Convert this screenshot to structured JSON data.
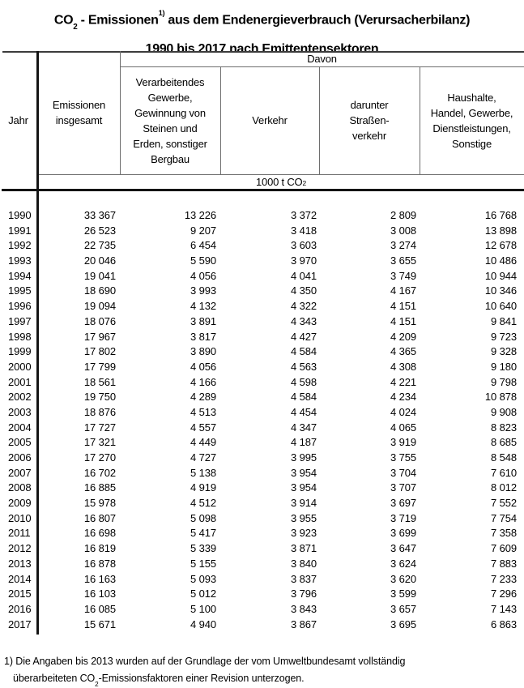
{
  "page": {
    "background": "#ffffff",
    "text_color": "#000000",
    "thin_line_color": "#6e6e6e",
    "thick_line_color": "#141414"
  },
  "title": {
    "co": "CO",
    "co_sub": "2",
    "mid": " - Emissionen",
    "footnote_ref": "1)",
    "rest": " aus dem Endenergieverbrauch (Verursacherbilanz)",
    "line2": "1990 bis 2017 nach Emittentensektoren"
  },
  "table": {
    "header": {
      "jahr": "Jahr",
      "emissionen_insgesamt": "Emissionen\ninsgesamt",
      "davon": "Davon",
      "verarbeitendes_gewerbe": "Verarbeitendes\nGewerbe,\nGewinnung von\nSteinen und\nErden, sonstiger\nBergbau",
      "verkehr": "Verkehr",
      "strassenverkehr": "darunter\nStraßen-\nverkehr",
      "haushalte": "Haushalte,\nHandel, Gewerbe,\nDienstleistungen,\nSonstige",
      "unit_pre": "1000 t CO",
      "unit_sub": "2"
    },
    "rows": [
      [
        "1990",
        "33 367",
        "13 226",
        "3 372",
        "2 809",
        "16 768"
      ],
      [
        "1991",
        "26 523",
        "9 207",
        "3 418",
        "3 008",
        "13 898"
      ],
      [
        "1992",
        "22 735",
        "6 454",
        "3 603",
        "3 274",
        "12 678"
      ],
      [
        "1993",
        "20 046",
        "5 590",
        "3 970",
        "3 655",
        "10 486"
      ],
      [
        "1994",
        "19 041",
        "4 056",
        "4 041",
        "3 749",
        "10 944"
      ],
      [
        "1995",
        "18 690",
        "3 993",
        "4 350",
        "4 167",
        "10 346"
      ],
      [
        "1996",
        "19 094",
        "4 132",
        "4 322",
        "4 151",
        "10 640"
      ],
      [
        "1997",
        "18 076",
        "3 891",
        "4 343",
        "4 151",
        "9 841"
      ],
      [
        "1998",
        "17 967",
        "3 817",
        "4 427",
        "4 209",
        "9 723"
      ],
      [
        "1999",
        "17 802",
        "3 890",
        "4 584",
        "4 365",
        "9 328"
      ],
      [
        "2000",
        "17 799",
        "4 056",
        "4 563",
        "4 308",
        "9 180"
      ],
      [
        "2001",
        "18 561",
        "4 166",
        "4 598",
        "4 221",
        "9 798"
      ],
      [
        "2002",
        "19 750",
        "4 289",
        "4 584",
        "4 234",
        "10 878"
      ],
      [
        "2003",
        "18 876",
        "4 513",
        "4 454",
        "4 024",
        "9 908"
      ],
      [
        "2004",
        "17 727",
        "4 557",
        "4 347",
        "4 065",
        "8 823"
      ],
      [
        "2005",
        "17 321",
        "4 449",
        "4 187",
        "3 919",
        "8 685"
      ],
      [
        "2006",
        "17 270",
        "4 727",
        "3 995",
        "3 755",
        "8 548"
      ],
      [
        "2007",
        "16 702",
        "5 138",
        "3 954",
        "3 704",
        "7 610"
      ],
      [
        "2008",
        "16 885",
        "4 919",
        "3 954",
        "3 707",
        "8 012"
      ],
      [
        "2009",
        "15 978",
        "4 512",
        "3 914",
        "3 697",
        "7 552"
      ],
      [
        "2010",
        "16 807",
        "5 098",
        "3 955",
        "3 719",
        "7 754"
      ],
      [
        "2011",
        "16 698",
        "5 417",
        "3 923",
        "3 699",
        "7 358"
      ],
      [
        "2012",
        "16 819",
        "5 339",
        "3 871",
        "3 647",
        "7 609"
      ],
      [
        "2013",
        "16 878",
        "5 155",
        "3 840",
        "3 624",
        "7 883"
      ],
      [
        "2014",
        "16 163",
        "5 093",
        "3 837",
        "3 620",
        "7 233"
      ],
      [
        "2015",
        "16 103",
        "5 012",
        "3 796",
        "3 599",
        "7 296"
      ],
      [
        "2016",
        "16 085",
        "5 100",
        "3 843",
        "3 657",
        "7 143"
      ],
      [
        "2017",
        "15 671",
        "4 940",
        "3 867",
        "3 695",
        "6 863"
      ]
    ]
  },
  "footnote": {
    "line1": "1) Die Angaben bis 2013 wurden auf der Grundlage der vom Umweltbundesamt vollständig",
    "line2_pre": "überarbeiteten CO",
    "line2_sub": "2",
    "line2_post": "-Emissionsfaktoren einer Revision unterzogen."
  },
  "chart_data": {
    "type": "table",
    "title": "CO2-Emissionen aus dem Endenergieverbrauch (Verursacherbilanz) 1990 bis 2017 nach Emittentensektoren",
    "unit": "1000 t CO2",
    "columns": [
      "Jahr",
      "Emissionen insgesamt",
      "Verarbeitendes Gewerbe, Gewinnung von Steinen und Erden, sonstiger Bergbau",
      "Verkehr",
      "darunter Straßenverkehr",
      "Haushalte, Handel, Gewerbe, Dienstleistungen, Sonstige"
    ],
    "rows": [
      [
        1990,
        33367,
        13226,
        3372,
        2809,
        16768
      ],
      [
        1991,
        26523,
        9207,
        3418,
        3008,
        13898
      ],
      [
        1992,
        22735,
        6454,
        3603,
        3274,
        12678
      ],
      [
        1993,
        20046,
        5590,
        3970,
        3655,
        10486
      ],
      [
        1994,
        19041,
        4056,
        4041,
        3749,
        10944
      ],
      [
        1995,
        18690,
        3993,
        4350,
        4167,
        10346
      ],
      [
        1996,
        19094,
        4132,
        4322,
        4151,
        10640
      ],
      [
        1997,
        18076,
        3891,
        4343,
        4151,
        9841
      ],
      [
        1998,
        17967,
        3817,
        4427,
        4209,
        9723
      ],
      [
        1999,
        17802,
        3890,
        4584,
        4365,
        9328
      ],
      [
        2000,
        17799,
        4056,
        4563,
        4308,
        9180
      ],
      [
        2001,
        18561,
        4166,
        4598,
        4221,
        9798
      ],
      [
        2002,
        19750,
        4289,
        4584,
        4234,
        10878
      ],
      [
        2003,
        18876,
        4513,
        4454,
        4024,
        9908
      ],
      [
        2004,
        17727,
        4557,
        4347,
        4065,
        8823
      ],
      [
        2005,
        17321,
        4449,
        4187,
        3919,
        8685
      ],
      [
        2006,
        17270,
        4727,
        3995,
        3755,
        8548
      ],
      [
        2007,
        16702,
        5138,
        3954,
        3704,
        7610
      ],
      [
        2008,
        16885,
        4919,
        3954,
        3707,
        8012
      ],
      [
        2009,
        15978,
        4512,
        3914,
        3697,
        7552
      ],
      [
        2010,
        16807,
        5098,
        3955,
        3719,
        7754
      ],
      [
        2011,
        16698,
        5417,
        3923,
        3699,
        7358
      ],
      [
        2012,
        16819,
        5339,
        3871,
        3647,
        7609
      ],
      [
        2013,
        16878,
        5155,
        3840,
        3624,
        7883
      ],
      [
        2014,
        16163,
        5093,
        3837,
        3620,
        7233
      ],
      [
        2015,
        16103,
        5012,
        3796,
        3599,
        7296
      ],
      [
        2016,
        16085,
        5100,
        3843,
        3657,
        7143
      ],
      [
        2017,
        15671,
        4940,
        3867,
        3695,
        6863
      ]
    ]
  }
}
